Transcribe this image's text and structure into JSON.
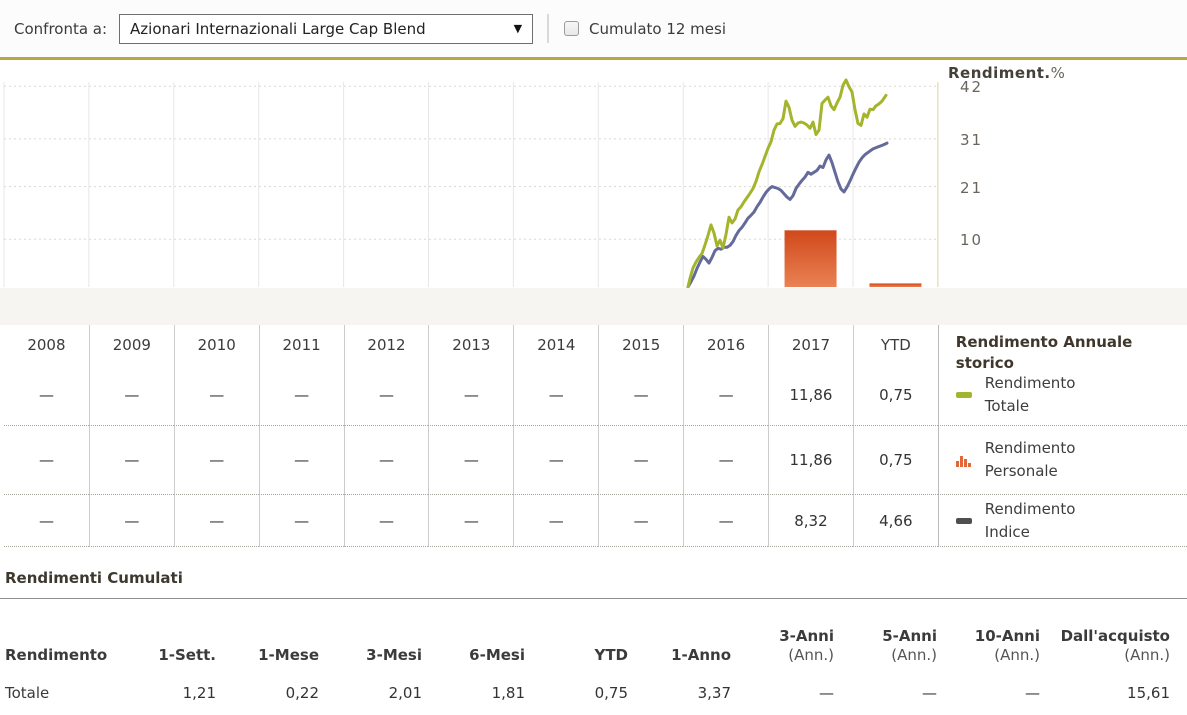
{
  "toolbar": {
    "compare_label": "Confronta a:",
    "dropdown_value": "Azionari Internazionali Large Cap Blend",
    "dropdown_icon": "▼",
    "checkbox_label": "Cumulato 12 mesi",
    "checkbox_checked": false
  },
  "chart_data": {
    "type": "line+bar",
    "ylabel": "Rendiment.",
    "ylabel_unit": "%",
    "y_ticks": [
      42,
      31,
      21,
      10
    ],
    "ylim": [
      0,
      44.5
    ],
    "grid": true,
    "categories": [
      "2008",
      "2009",
      "2010",
      "2011",
      "2012",
      "2013",
      "2014",
      "2015",
      "2016",
      "2017",
      "YTD"
    ],
    "series": [
      {
        "name": "Rendimento Totale",
        "type": "line",
        "color": "#a4b42d",
        "points": [
          [
            688,
            0
          ],
          [
            690,
            1.8
          ],
          [
            693,
            4
          ],
          [
            696,
            5.2
          ],
          [
            699,
            6.2
          ],
          [
            702,
            7
          ],
          [
            705,
            8.8
          ],
          [
            708,
            10.8
          ],
          [
            711,
            13
          ],
          [
            714,
            11.3
          ],
          [
            717,
            8.6
          ],
          [
            720,
            9.8
          ],
          [
            723,
            8.2
          ],
          [
            726,
            11
          ],
          [
            729,
            14.6
          ],
          [
            732,
            13.4
          ],
          [
            735,
            14.2
          ],
          [
            738,
            16.1
          ],
          [
            741,
            16.8
          ],
          [
            744,
            17.8
          ],
          [
            747,
            18.7
          ],
          [
            750,
            19.6
          ],
          [
            753,
            20.6
          ],
          [
            756,
            22.1
          ],
          [
            759,
            24.1
          ],
          [
            762,
            25.6
          ],
          [
            765,
            27.3
          ],
          [
            768,
            29
          ],
          [
            771,
            30.4
          ],
          [
            774,
            32.8
          ],
          [
            777,
            34.1
          ],
          [
            780,
            34.2
          ],
          [
            783,
            35.2
          ],
          [
            786,
            38.9
          ],
          [
            789,
            37.6
          ],
          [
            792,
            34.9
          ],
          [
            795,
            33.6
          ],
          [
            798,
            34.3
          ],
          [
            801,
            34.5
          ],
          [
            804,
            34.3
          ],
          [
            807,
            33.9
          ],
          [
            810,
            33.2
          ],
          [
            813,
            34.5
          ],
          [
            816,
            31.9
          ],
          [
            819,
            32.8
          ],
          [
            822,
            38.4
          ],
          [
            825,
            39.1
          ],
          [
            828,
            39.7
          ],
          [
            831,
            37.9
          ],
          [
            834,
            37.1
          ],
          [
            837,
            38.5
          ],
          [
            840,
            39.7
          ],
          [
            843,
            42.2
          ],
          [
            846,
            43.3
          ],
          [
            849,
            41.9
          ],
          [
            852,
            40.8
          ],
          [
            855,
            37.1
          ],
          [
            858,
            34.2
          ],
          [
            861,
            33.8
          ],
          [
            864,
            36.2
          ],
          [
            867,
            35.5
          ],
          [
            870,
            37.2
          ],
          [
            873,
            37.1
          ],
          [
            876,
            37.9
          ],
          [
            879,
            38.3
          ],
          [
            882,
            38.9
          ],
          [
            886,
            40.1
          ]
        ]
      },
      {
        "name": "Rendimento Indice",
        "type": "line",
        "color": "#646a99",
        "points": [
          [
            688,
            0
          ],
          [
            691,
            1.1
          ],
          [
            694,
            2.3
          ],
          [
            697,
            3.9
          ],
          [
            700,
            5.2
          ],
          [
            703,
            6.4
          ],
          [
            706,
            5.8
          ],
          [
            709,
            5
          ],
          [
            712,
            6.2
          ],
          [
            715,
            7.6
          ],
          [
            718,
            8.1
          ],
          [
            721,
            7.9
          ],
          [
            724,
            8.3
          ],
          [
            727,
            8.3
          ],
          [
            730,
            8.7
          ],
          [
            733,
            9.5
          ],
          [
            736,
            10.8
          ],
          [
            739,
            11.8
          ],
          [
            742,
            12.5
          ],
          [
            745,
            13.4
          ],
          [
            748,
            14.4
          ],
          [
            751,
            15
          ],
          [
            754,
            15.7
          ],
          [
            757,
            16.8
          ],
          [
            760,
            17.7
          ],
          [
            763,
            18.8
          ],
          [
            766,
            19.8
          ],
          [
            769,
            20.5
          ],
          [
            772,
            21
          ],
          [
            775,
            20.8
          ],
          [
            778,
            20.6
          ],
          [
            781,
            20.2
          ],
          [
            784,
            19.5
          ],
          [
            787,
            18.8
          ],
          [
            790,
            18.3
          ],
          [
            793,
            19.1
          ],
          [
            796,
            20.6
          ],
          [
            799,
            21.5
          ],
          [
            802,
            22.3
          ],
          [
            805,
            23
          ],
          [
            808,
            24
          ],
          [
            811,
            23.6
          ],
          [
            814,
            24
          ],
          [
            817,
            24.4
          ],
          [
            820,
            25.3
          ],
          [
            823,
            25
          ],
          [
            826,
            26.6
          ],
          [
            829,
            27.6
          ],
          [
            832,
            26
          ],
          [
            835,
            24
          ],
          [
            838,
            22
          ],
          [
            841,
            20.5
          ],
          [
            844,
            19.9
          ],
          [
            847,
            20.9
          ],
          [
            850,
            22.2
          ],
          [
            853,
            23.6
          ],
          [
            856,
            24.9
          ],
          [
            859,
            26.1
          ],
          [
            862,
            27
          ],
          [
            865,
            27.7
          ],
          [
            869,
            28.3
          ],
          [
            873,
            28.9
          ],
          [
            878,
            29.3
          ],
          [
            883,
            29.7
          ],
          [
            887,
            30.1
          ]
        ]
      },
      {
        "name": "Rendimento Personale",
        "type": "bar",
        "color_top": "#d0491b",
        "color_bottom": "#ea8154",
        "bars": [
          {
            "category": "2017",
            "value": 11.86
          },
          {
            "category": "YTD",
            "value": 0.75
          }
        ]
      }
    ]
  },
  "annual_table": {
    "years": [
      "2008",
      "2009",
      "2010",
      "2011",
      "2012",
      "2013",
      "2014",
      "2015",
      "2016",
      "2017",
      "YTD"
    ],
    "rows": [
      {
        "name": "Rendimento Totale",
        "values": [
          "—",
          "—",
          "—",
          "—",
          "—",
          "—",
          "—",
          "—",
          "—",
          "11,86",
          "0,75"
        ]
      },
      {
        "name": "Rendimento Personale",
        "values": [
          "—",
          "—",
          "—",
          "—",
          "—",
          "—",
          "—",
          "—",
          "—",
          "11,86",
          "0,75"
        ]
      },
      {
        "name": "Rendimento Indice",
        "values": [
          "—",
          "—",
          "—",
          "—",
          "—",
          "—",
          "—",
          "—",
          "—",
          "8,32",
          "4,66"
        ]
      }
    ],
    "legend": {
      "title": "Rendimento Annuale storico",
      "items": [
        {
          "label": "Rendimento Totale",
          "icon": "green-dash-icon",
          "color": "#a4b42d"
        },
        {
          "label": "Rendimento Personale",
          "icon": "orange-bars-icon",
          "color": "#e2673a"
        },
        {
          "label": "Rendimento Indice",
          "icon": "gray-dash-icon",
          "color": "#4f4f4f"
        }
      ]
    }
  },
  "cumulative": {
    "title": "Rendimenti Cumulati",
    "columns": [
      {
        "label": "Rendimento",
        "sub": ""
      },
      {
        "label": "1-Sett.",
        "sub": ""
      },
      {
        "label": "1-Mese",
        "sub": ""
      },
      {
        "label": "3-Mesi",
        "sub": ""
      },
      {
        "label": "6-Mesi",
        "sub": ""
      },
      {
        "label": "YTD",
        "sub": ""
      },
      {
        "label": "1-Anno",
        "sub": ""
      },
      {
        "label": "3-Anni",
        "sub": "(Ann.)"
      },
      {
        "label": "5-Anni",
        "sub": "(Ann.)"
      },
      {
        "label": "10-Anni",
        "sub": "(Ann.)"
      },
      {
        "label": "Dall'acquisto",
        "sub": "(Ann.)"
      }
    ],
    "rows": [
      {
        "cells": [
          "Totale",
          "1,21",
          "0,22",
          "2,01",
          "1,81",
          "0,75",
          "3,37",
          "—",
          "—",
          "—",
          "15,61"
        ]
      }
    ]
  }
}
